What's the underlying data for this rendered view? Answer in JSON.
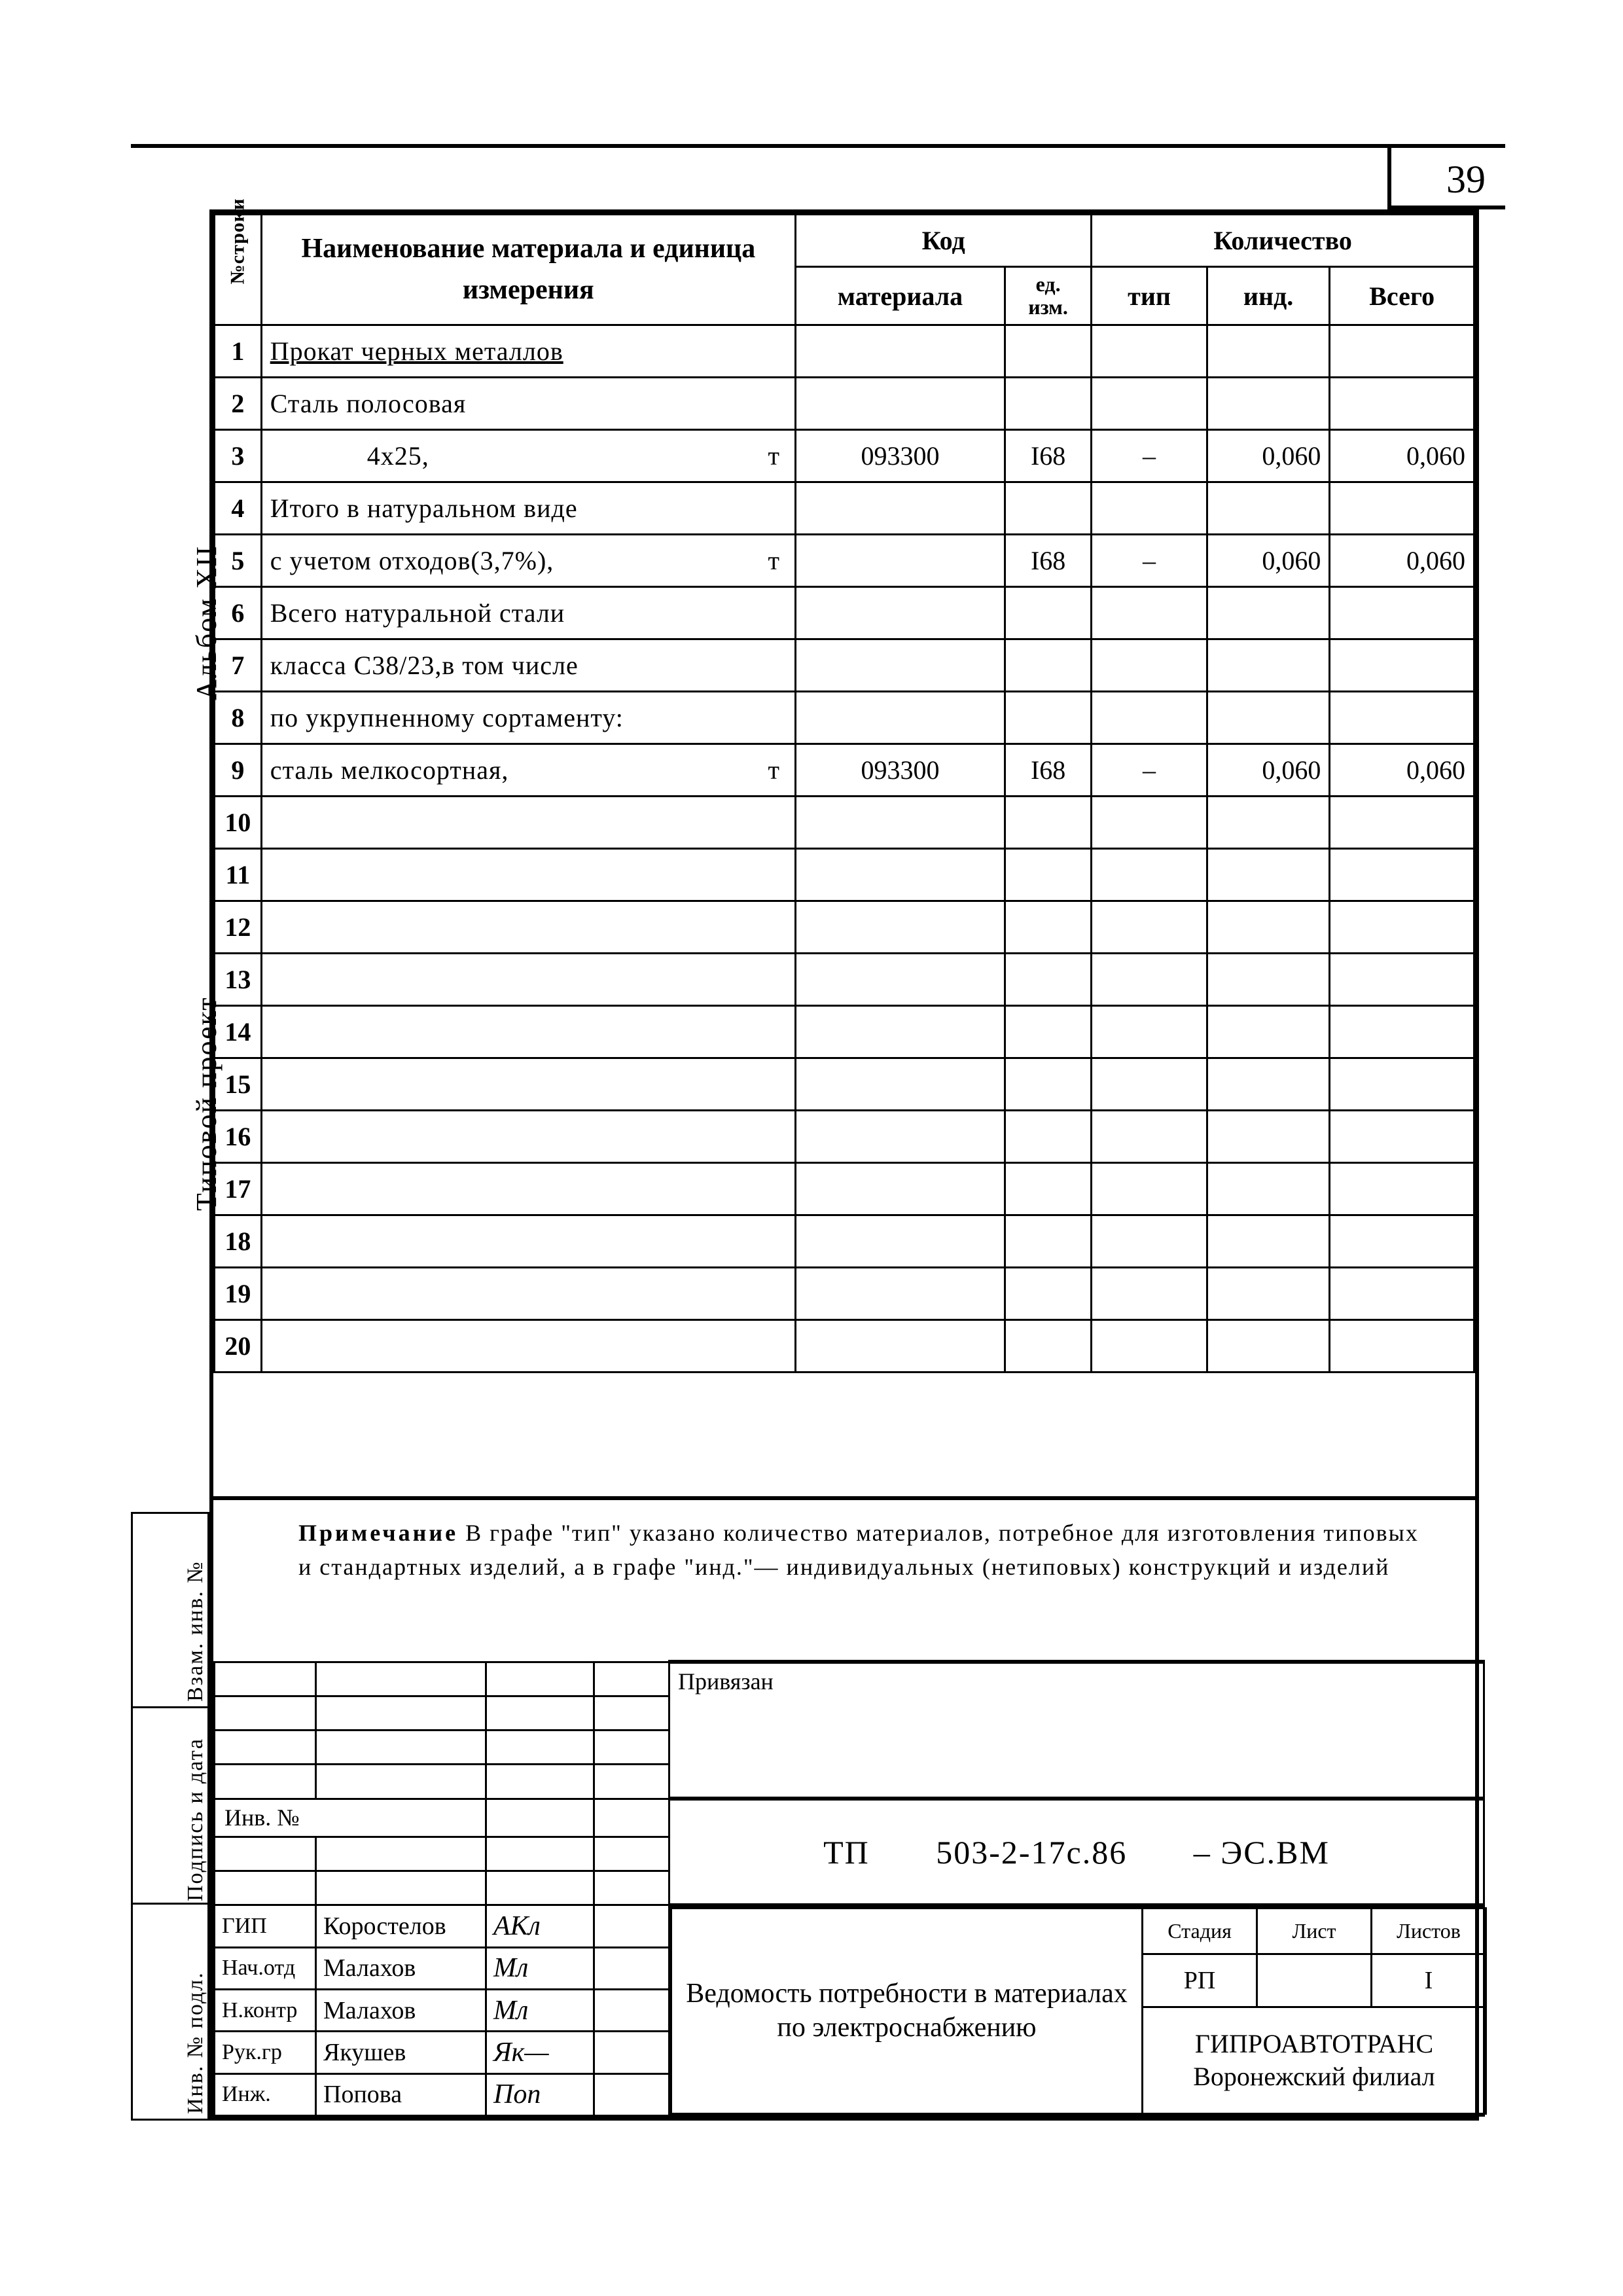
{
  "page_number": "39",
  "side_labels": {
    "album": "Альбом XII",
    "project": "Типовой проект",
    "vzam": "Взам. инв. №",
    "podpis": "Подпись и дата",
    "inv": "Инв. № подл."
  },
  "table": {
    "headers": {
      "row_no": "№строки",
      "name": "Наименование материала и единица измерения",
      "code": "Код",
      "code_material": "материала",
      "code_unit": "ед. изм.",
      "qty": "Количество",
      "qty_tip": "тип",
      "qty_ind": "инд.",
      "qty_total": "Всего"
    },
    "rows": [
      {
        "n": "1",
        "name": "Прокат черных металлов",
        "underline": true
      },
      {
        "n": "2",
        "name": "Сталь полосовая"
      },
      {
        "n": "3",
        "name": "4х25,",
        "indent": true,
        "unit": "т",
        "mat": "093300",
        "ed": "I68",
        "tip": "–",
        "ind": "0,060",
        "total": "0,060"
      },
      {
        "n": "4",
        "name": "Итого в натуральном виде"
      },
      {
        "n": "5",
        "name": "с учетом отходов(3,7%),",
        "unit": "т",
        "ed": "I68",
        "tip": "–",
        "ind": "0,060",
        "total": "0,060"
      },
      {
        "n": "6",
        "name": "Всего натуральной стали"
      },
      {
        "n": "7",
        "name": "класса С38/23,в том числе"
      },
      {
        "n": "8",
        "name": "по укрупненному сортаменту:"
      },
      {
        "n": "9",
        "name": "сталь мелкосортная,",
        "unit": "т",
        "mat": "093300",
        "ed": "I68",
        "tip": "–",
        "ind": "0,060",
        "total": "0,060"
      },
      {
        "n": "10"
      },
      {
        "n": "11"
      },
      {
        "n": "12"
      },
      {
        "n": "13"
      },
      {
        "n": "14"
      },
      {
        "n": "15"
      },
      {
        "n": "16"
      },
      {
        "n": "17"
      },
      {
        "n": "18"
      },
      {
        "n": "19"
      },
      {
        "n": "20"
      }
    ]
  },
  "note": "Примечание В графе \"тип\" указано количество материалов, потребное для изготовления типовых и стандартных изделий, а в графе \"инд.\"— индивидуальных (нетиповых) конструкций и изделий",
  "stamp": {
    "inv_label": "Инв. №",
    "priv_label": "Привязан",
    "designation_prefix": "ТП",
    "designation_code": "503-2-17с.86",
    "designation_suffix": "– ЭС.ВМ",
    "doc_title": "Ведомость потребности в материалах по электроснабжению",
    "stage_hdr": "Стадия",
    "sheet_hdr": "Лист",
    "sheets_hdr": "Листов",
    "stage": "РП",
    "sheet": "",
    "sheets": "I",
    "org_line1": "ГИПРОАВТОТРАНС",
    "org_line2": "Воронежский филиал",
    "roles": [
      {
        "role": "ГИП",
        "name": "Коростелов",
        "sig": "АКл"
      },
      {
        "role": "Нач.отд",
        "name": "Малахов",
        "sig": "Мл"
      },
      {
        "role": "Н.контр",
        "name": "Малахов",
        "sig": "Мл"
      },
      {
        "role": "Рук.гр",
        "name": "Якушев",
        "sig": "Як—"
      },
      {
        "role": "Инж.",
        "name": "Попова",
        "sig": "Поп"
      }
    ]
  },
  "colors": {
    "ink": "#000000",
    "bg": "#ffffff"
  }
}
